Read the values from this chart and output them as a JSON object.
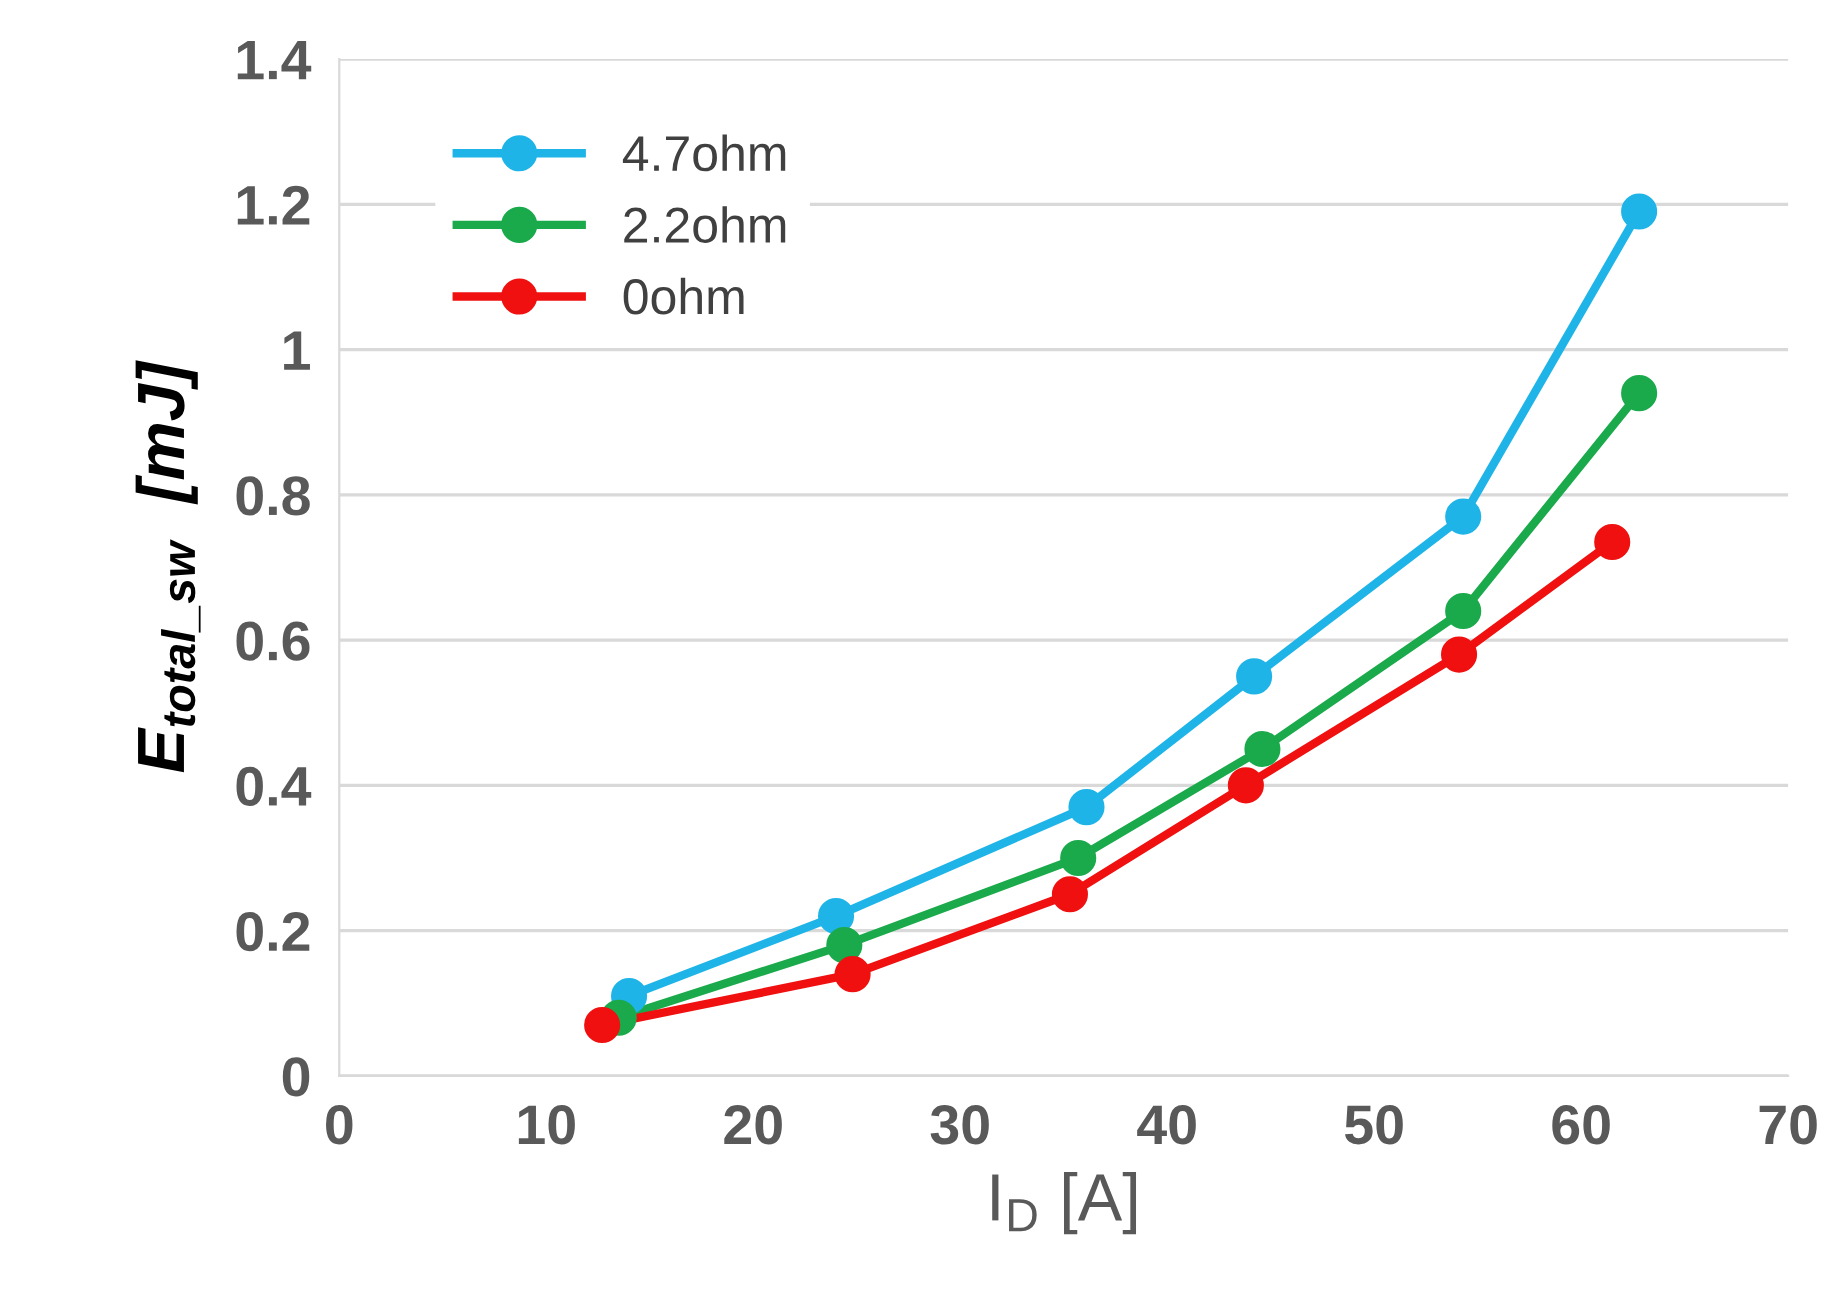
{
  "chart_data": {
    "type": "line",
    "xlabel": "I$_{D}$ [A]",
    "ylabel": "E$_{total_sw}$  [mJ]",
    "xlim": [
      0,
      70
    ],
    "xticks": [
      0,
      10,
      20,
      30,
      40,
      50,
      60,
      70
    ],
    "ylim": [
      0,
      1.4
    ],
    "yticks": [
      0,
      0.2,
      0.4,
      0.6,
      0.8,
      1,
      1.2,
      1.4
    ],
    "grid": "y",
    "legend": "top left",
    "marker": "circle",
    "line_style": "solid",
    "series": [
      {
        "name": "4.7ohm",
        "color": "#1fb4e8",
        "x": [
          14.0,
          24.0,
          36.1,
          44.2,
          54.3,
          62.8
        ],
        "values": [
          0.11,
          0.22,
          0.37,
          0.55,
          0.77,
          1.19
        ]
      },
      {
        "name": "2.2ohm",
        "color": "#1aaa4b",
        "x": [
          13.5,
          24.4,
          35.7,
          44.6,
          54.3,
          62.8
        ],
        "values": [
          0.08,
          0.18,
          0.3,
          0.45,
          0.64,
          0.94
        ]
      },
      {
        "name": "0ohm",
        "color": "#f01010",
        "x": [
          12.7,
          24.8,
          35.3,
          43.8,
          54.1,
          61.5
        ],
        "values": [
          0.07,
          0.14,
          0.25,
          0.4,
          0.58,
          0.735
        ]
      }
    ]
  }
}
